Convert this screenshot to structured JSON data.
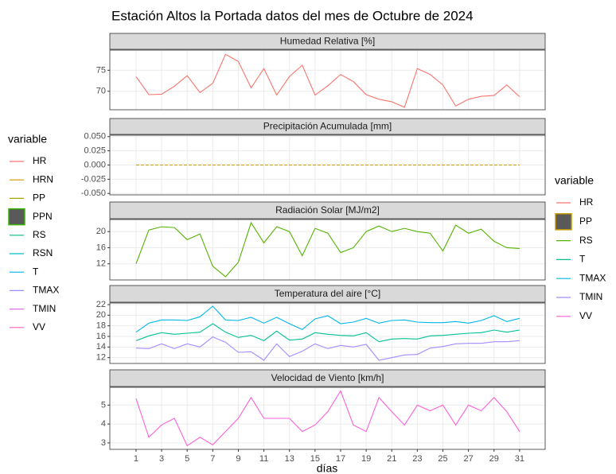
{
  "title": "Estación Altos la Portada datos del mes de Octubre de 2024",
  "xlabel": "días",
  "x": [
    1,
    2,
    3,
    4,
    5,
    6,
    7,
    8,
    9,
    10,
    11,
    12,
    13,
    14,
    15,
    16,
    17,
    18,
    19,
    20,
    21,
    22,
    23,
    24,
    25,
    26,
    27,
    28,
    29,
    30,
    31
  ],
  "xlim": [
    -1.05,
    33
  ],
  "xticks": [
    1,
    3,
    5,
    7,
    9,
    11,
    13,
    15,
    17,
    19,
    21,
    23,
    25,
    27,
    29,
    31
  ],
  "grid": true,
  "chart_data": [
    {
      "type": "line",
      "title": "Humedad Relativa [%]",
      "ylim": [
        65.6,
        79.8
      ],
      "yticks": [
        70,
        75
      ],
      "series": [
        {
          "color": "#F8766D",
          "values": [
            73.5,
            69.2,
            69.3,
            71.2,
            73.7,
            69.7,
            71.9,
            78.8,
            77.1,
            70.8,
            75.4,
            69.1,
            73.5,
            76.2,
            69.1,
            71.3,
            74.0,
            72.3,
            69.2,
            68.1,
            67.5,
            66.2,
            75.4,
            74.0,
            71.5,
            66.5,
            68.1,
            68.8,
            69.0,
            71.5,
            68.7
          ]
        }
      ]
    },
    {
      "type": "line",
      "title": "Precipitación Acumulada [mm]",
      "ylim": [
        -0.0525,
        0.0525
      ],
      "yticks": [
        {
          "value": -0.05,
          "label": "-0.050"
        },
        {
          "value": -0.025,
          "label": "-0.025"
        },
        {
          "value": 0,
          "label": "0.000"
        },
        {
          "value": 0.025,
          "label": "0.025"
        },
        {
          "value": 0.05,
          "label": "0.050"
        }
      ],
      "series": [
        {
          "color": "#C49A00",
          "dash": true,
          "values": [
            0,
            0,
            0,
            0,
            0,
            0,
            0,
            0,
            0,
            0,
            0,
            0,
            0,
            0,
            0,
            0,
            0,
            0,
            0,
            0,
            0,
            0,
            0,
            0,
            0,
            0,
            0,
            0,
            0,
            0,
            0
          ]
        }
      ]
    },
    {
      "type": "line",
      "title": "Radiación Solar [MJ/m2]",
      "ylim": [
        8,
        23
      ],
      "yticks": [
        12,
        16,
        20
      ],
      "series": [
        {
          "color": "#53B400",
          "values": [
            12,
            20.4,
            21.2,
            21.0,
            18.0,
            19.4,
            11.4,
            8.8,
            12.4,
            22.2,
            17.2,
            21.2,
            20.0,
            14.0,
            20.8,
            19.6,
            14.8,
            16.0,
            20.0,
            21.4,
            20.0,
            20.8,
            20.0,
            19.6,
            15.2,
            21.6,
            19.6,
            20.6,
            17.6,
            16.0,
            15.8
          ]
        }
      ]
    },
    {
      "type": "line",
      "title": "Temperatura del aire [°C]",
      "ylim": [
        10.9,
        22.3
      ],
      "yticks": [
        12,
        14,
        16,
        18,
        20,
        22
      ],
      "series": [
        {
          "color": "#00C094",
          "values": [
            15.2,
            16.1,
            16.7,
            16.4,
            16.6,
            16.8,
            18.4,
            16.8,
            15.8,
            16.2,
            15.2,
            17.0,
            15.3,
            15.5,
            16.7,
            16.4,
            16.2,
            16.1,
            16.7,
            15.0,
            15.5,
            15.6,
            15.5,
            16.1,
            16.2,
            16.4,
            16.6,
            16.7,
            17.2,
            16.8,
            17.2
          ]
        },
        {
          "color": "#00B6EB",
          "values": [
            16.8,
            18.5,
            19.1,
            19.1,
            19.0,
            19.7,
            21.7,
            19.1,
            19.0,
            19.6,
            18.5,
            19.6,
            18.4,
            17.3,
            19.3,
            19.9,
            18.4,
            18.7,
            19.4,
            18.5,
            19.0,
            19.1,
            18.7,
            18.6,
            18.6,
            18.8,
            18.5,
            19.0,
            19.9,
            18.8,
            19.4
          ]
        },
        {
          "color": "#A58AFF",
          "values": [
            13.8,
            13.7,
            14.6,
            13.7,
            14.6,
            14.0,
            15.9,
            14.9,
            13.0,
            13.1,
            11.5,
            14.6,
            12.2,
            13.2,
            14.6,
            13.7,
            14.3,
            14.0,
            14.5,
            11.5,
            12.0,
            12.5,
            12.6,
            13.8,
            14.1,
            14.6,
            14.7,
            14.7,
            15.0,
            15.0,
            15.2
          ]
        }
      ]
    },
    {
      "type": "line",
      "title": "Velocidad de Viento [km/h]",
      "ylim": [
        2.66,
        5.94
      ],
      "yticks": [
        3,
        4,
        5
      ],
      "series": [
        {
          "color": "#FB61D7",
          "values": [
            5.35,
            3.3,
            3.95,
            4.3,
            2.85,
            3.3,
            2.9,
            3.6,
            4.3,
            5.4,
            4.3,
            4.3,
            4.3,
            3.6,
            3.95,
            4.65,
            5.75,
            3.95,
            3.6,
            5.4,
            4.65,
            3.95,
            5.0,
            4.7,
            5.0,
            3.95,
            5.0,
            4.7,
            5.4,
            4.65,
            3.6
          ]
        }
      ]
    }
  ],
  "legends": [
    {
      "title": "variable",
      "items": [
        {
          "name": "HR",
          "color": "#F8766D",
          "shape": "line"
        },
        {
          "name": "HRN",
          "color": "#D89000",
          "shape": "line"
        },
        {
          "name": "PP",
          "color": "#A3A500",
          "shape": "line"
        },
        {
          "name": "PPN",
          "color": "#39B600",
          "shape": "box"
        },
        {
          "name": "RS",
          "color": "#00BF7D",
          "shape": "line"
        },
        {
          "name": "RSN",
          "color": "#00BFC4",
          "shape": "line"
        },
        {
          "name": "T",
          "color": "#00B0F6",
          "shape": "line"
        },
        {
          "name": "TMAX",
          "color": "#9590FF",
          "shape": "line"
        },
        {
          "name": "TMIN",
          "color": "#E76BF3",
          "shape": "line"
        },
        {
          "name": "VV",
          "color": "#FF62BC",
          "shape": "line"
        }
      ]
    },
    {
      "title": "variable",
      "items": [
        {
          "name": "HR",
          "color": "#F8766D",
          "shape": "line"
        },
        {
          "name": "PP",
          "color": "#C49A00",
          "shape": "box"
        },
        {
          "name": "RS",
          "color": "#53B400",
          "shape": "line"
        },
        {
          "name": "T",
          "color": "#00C094",
          "shape": "line"
        },
        {
          "name": "TMAX",
          "color": "#00B6EB",
          "shape": "line"
        },
        {
          "name": "TMIN",
          "color": "#A58AFF",
          "shape": "line"
        },
        {
          "name": "VV",
          "color": "#FB61D7",
          "shape": "line"
        }
      ]
    }
  ]
}
